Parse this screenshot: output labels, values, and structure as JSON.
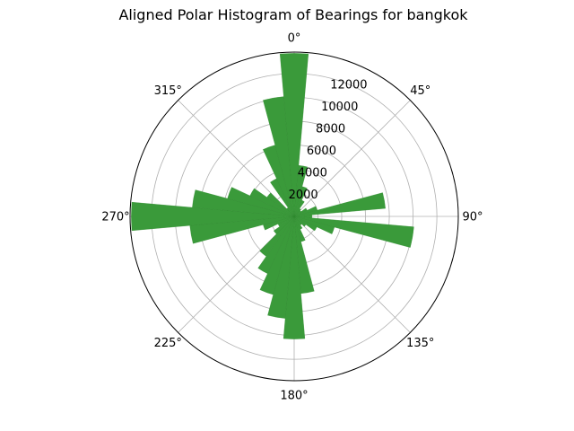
{
  "chart_data": {
    "type": "polar-bar",
    "title": "Aligned Polar Histogram of Bearings for bangkok",
    "theta_zero": "north",
    "theta_direction": "clockwise",
    "angle_tick_labels": [
      "0°",
      "45°",
      "90°",
      "135°",
      "180°",
      "225°",
      "270°",
      "315°"
    ],
    "radial_ticks": [
      2000,
      4000,
      6000,
      8000,
      10000,
      12000
    ],
    "radial_tick_labels": [
      "2000",
      "4000",
      "6000",
      "8000",
      "10000",
      "12000"
    ],
    "rmax": 13800,
    "bar_color": "#3a9a3a",
    "grid": true,
    "bins": [
      {
        "angle": 0,
        "value": 13700
      },
      {
        "angle": 10,
        "value": 4300
      },
      {
        "angle": 20,
        "value": 2600
      },
      {
        "angle": 30,
        "value": 1500
      },
      {
        "angle": 40,
        "value": 800
      },
      {
        "angle": 50,
        "value": 700
      },
      {
        "angle": 60,
        "value": 1200
      },
      {
        "angle": 70,
        "value": 2000
      },
      {
        "angle": 80,
        "value": 7700
      },
      {
        "angle": 90,
        "value": 1500
      },
      {
        "angle": 100,
        "value": 10100
      },
      {
        "angle": 110,
        "value": 3500
      },
      {
        "angle": 120,
        "value": 2100
      },
      {
        "angle": 130,
        "value": 1200
      },
      {
        "angle": 140,
        "value": 900
      },
      {
        "angle": 150,
        "value": 1200
      },
      {
        "angle": 160,
        "value": 2200
      },
      {
        "angle": 170,
        "value": 6500
      },
      {
        "angle": 180,
        "value": 10300
      },
      {
        "angle": 190,
        "value": 8600
      },
      {
        "angle": 200,
        "value": 6800
      },
      {
        "angle": 210,
        "value": 5300
      },
      {
        "angle": 220,
        "value": 4100
      },
      {
        "angle": 230,
        "value": 2100
      },
      {
        "angle": 240,
        "value": 1500
      },
      {
        "angle": 250,
        "value": 2700
      },
      {
        "angle": 260,
        "value": 8800
      },
      {
        "angle": 270,
        "value": 13700
      },
      {
        "angle": 280,
        "value": 8600
      },
      {
        "angle": 290,
        "value": 5800
      },
      {
        "angle": 300,
        "value": 4100
      },
      {
        "angle": 310,
        "value": 2800
      },
      {
        "angle": 320,
        "value": 900
      },
      {
        "angle": 330,
        "value": 3500
      },
      {
        "angle": 340,
        "value": 6200
      },
      {
        "angle": 350,
        "value": 10100
      }
    ]
  }
}
